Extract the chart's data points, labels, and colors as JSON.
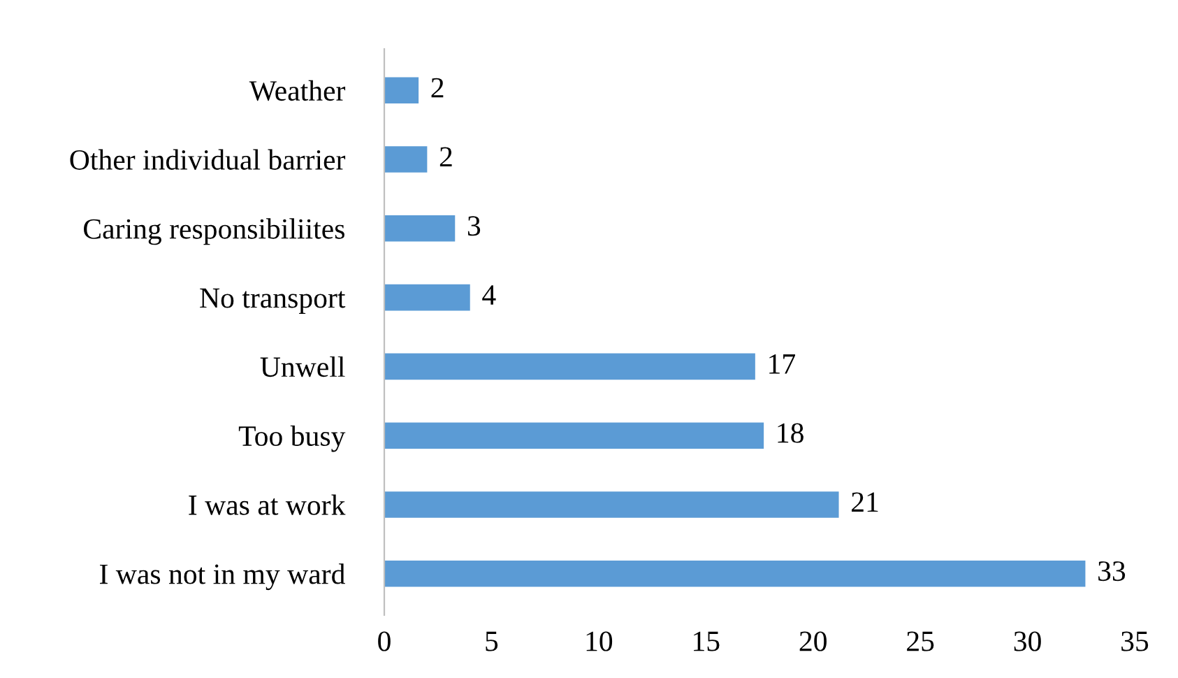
{
  "chart_data": {
    "type": "bar",
    "orientation": "horizontal",
    "categories": [
      "Weather",
      "Other individual barrier",
      "Caring responsibiliites",
      "No transport",
      "Unwell",
      "Too busy",
      "I was at work",
      "I was not in my ward"
    ],
    "values": [
      1.6,
      2.0,
      3.3,
      4.0,
      17.3,
      17.7,
      21.2,
      32.7
    ],
    "value_labels": [
      "2",
      "2",
      "3",
      "4",
      "17",
      "18",
      "21",
      "33"
    ],
    "color": "#5b9bd5",
    "xlim": [
      0,
      35
    ],
    "xticks": [
      0,
      5,
      10,
      15,
      20,
      25,
      30,
      35
    ],
    "grid": false
  }
}
